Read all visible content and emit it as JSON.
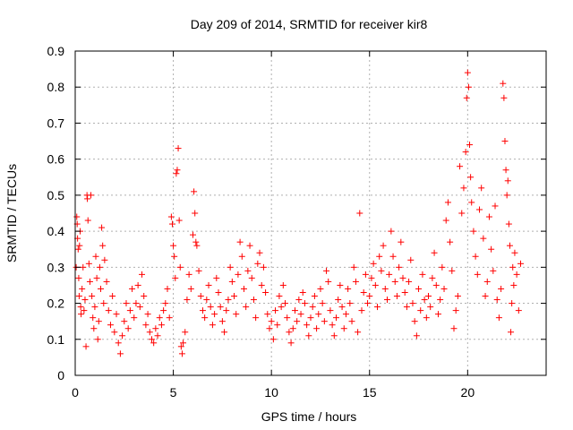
{
  "chart_data": {
    "type": "scatter",
    "title": "Day 209 of 2014, SRMTID for receiver kir8",
    "xlabel": "GPS time / hours",
    "ylabel": "SRMTID / TECUs",
    "xlim": [
      0,
      24
    ],
    "ylim": [
      0,
      0.9
    ],
    "xticks": [
      0,
      5,
      10,
      15,
      20
    ],
    "yticks": [
      0,
      0.1,
      0.2,
      0.3,
      0.4,
      0.5,
      0.6,
      0.7,
      0.8,
      0.9
    ],
    "xtick_labels": [
      "0",
      "5",
      "10",
      "15",
      "20"
    ],
    "ytick_labels": [
      "0",
      "0.1",
      "0.2",
      "0.3",
      "0.4",
      "0.5",
      "0.6",
      "0.7",
      "0.8",
      "0.9"
    ],
    "grid": true,
    "marker": "+",
    "color": "#ff0000",
    "series": [
      {
        "name": "SRMTID",
        "points": [
          [
            0.05,
            0.3
          ],
          [
            0.08,
            0.44
          ],
          [
            0.1,
            0.42
          ],
          [
            0.12,
            0.38
          ],
          [
            0.15,
            0.35
          ],
          [
            0.18,
            0.27
          ],
          [
            0.2,
            0.22
          ],
          [
            0.22,
            0.36
          ],
          [
            0.25,
            0.4
          ],
          [
            0.28,
            0.19
          ],
          [
            0.3,
            0.17
          ],
          [
            0.35,
            0.24
          ],
          [
            0.4,
            0.3
          ],
          [
            0.45,
            0.18
          ],
          [
            0.5,
            0.21
          ],
          [
            0.55,
            0.08
          ],
          [
            0.6,
            0.5
          ],
          [
            0.62,
            0.49
          ],
          [
            0.65,
            0.43
          ],
          [
            0.7,
            0.31
          ],
          [
            0.75,
            0.26
          ],
          [
            0.8,
            0.5
          ],
          [
            0.85,
            0.22
          ],
          [
            0.9,
            0.16
          ],
          [
            0.95,
            0.13
          ],
          [
            1.0,
            0.19
          ],
          [
            1.05,
            0.33
          ],
          [
            1.1,
            0.27
          ],
          [
            1.15,
            0.1
          ],
          [
            1.2,
            0.15
          ],
          [
            1.25,
            0.3
          ],
          [
            1.3,
            0.24
          ],
          [
            1.35,
            0.41
          ],
          [
            1.4,
            0.36
          ],
          [
            1.45,
            0.2
          ],
          [
            1.5,
            0.32
          ],
          [
            1.6,
            0.26
          ],
          [
            1.7,
            0.18
          ],
          [
            1.8,
            0.14
          ],
          [
            1.9,
            0.22
          ],
          [
            2.0,
            0.12
          ],
          [
            2.1,
            0.17
          ],
          [
            2.2,
            0.09
          ],
          [
            2.3,
            0.06
          ],
          [
            2.4,
            0.11
          ],
          [
            2.5,
            0.15
          ],
          [
            2.6,
            0.2
          ],
          [
            2.7,
            0.13
          ],
          [
            2.8,
            0.18
          ],
          [
            2.9,
            0.24
          ],
          [
            3.0,
            0.16
          ],
          [
            3.1,
            0.2
          ],
          [
            3.2,
            0.25
          ],
          [
            3.3,
            0.19
          ],
          [
            3.4,
            0.28
          ],
          [
            3.5,
            0.22
          ],
          [
            3.6,
            0.14
          ],
          [
            3.7,
            0.17
          ],
          [
            3.8,
            0.12
          ],
          [
            3.9,
            0.1
          ],
          [
            4.0,
            0.09
          ],
          [
            4.1,
            0.13
          ],
          [
            4.2,
            0.11
          ],
          [
            4.3,
            0.16
          ],
          [
            4.4,
            0.14
          ],
          [
            4.5,
            0.18
          ],
          [
            4.6,
            0.2
          ],
          [
            4.7,
            0.24
          ],
          [
            4.8,
            0.16
          ],
          [
            4.9,
            0.44
          ],
          [
            4.95,
            0.42
          ],
          [
            5.0,
            0.36
          ],
          [
            5.05,
            0.33
          ],
          [
            5.1,
            0.27
          ],
          [
            5.15,
            0.56
          ],
          [
            5.2,
            0.57
          ],
          [
            5.25,
            0.63
          ],
          [
            5.3,
            0.43
          ],
          [
            5.35,
            0.3
          ],
          [
            5.4,
            0.08
          ],
          [
            5.45,
            0.06
          ],
          [
            5.5,
            0.09
          ],
          [
            5.6,
            0.12
          ],
          [
            5.7,
            0.21
          ],
          [
            5.8,
            0.28
          ],
          [
            5.9,
            0.24
          ],
          [
            6.0,
            0.39
          ],
          [
            6.05,
            0.51
          ],
          [
            6.1,
            0.45
          ],
          [
            6.15,
            0.37
          ],
          [
            6.2,
            0.36
          ],
          [
            6.3,
            0.29
          ],
          [
            6.4,
            0.22
          ],
          [
            6.5,
            0.18
          ],
          [
            6.6,
            0.16
          ],
          [
            6.7,
            0.21
          ],
          [
            6.8,
            0.25
          ],
          [
            6.9,
            0.19
          ],
          [
            7.0,
            0.14
          ],
          [
            7.1,
            0.17
          ],
          [
            7.2,
            0.27
          ],
          [
            7.3,
            0.23
          ],
          [
            7.4,
            0.19
          ],
          [
            7.5,
            0.15
          ],
          [
            7.6,
            0.12
          ],
          [
            7.7,
            0.18
          ],
          [
            7.8,
            0.21
          ],
          [
            7.9,
            0.3
          ],
          [
            8.0,
            0.26
          ],
          [
            8.1,
            0.22
          ],
          [
            8.2,
            0.17
          ],
          [
            8.3,
            0.28
          ],
          [
            8.4,
            0.37
          ],
          [
            8.5,
            0.33
          ],
          [
            8.6,
            0.24
          ],
          [
            8.7,
            0.19
          ],
          [
            8.8,
            0.29
          ],
          [
            8.9,
            0.36
          ],
          [
            9.0,
            0.27
          ],
          [
            9.1,
            0.21
          ],
          [
            9.2,
            0.16
          ],
          [
            9.3,
            0.31
          ],
          [
            9.4,
            0.34
          ],
          [
            9.5,
            0.25
          ],
          [
            9.6,
            0.3
          ],
          [
            9.7,
            0.23
          ],
          [
            9.8,
            0.17
          ],
          [
            9.9,
            0.13
          ],
          [
            10.0,
            0.15
          ],
          [
            10.1,
            0.1
          ],
          [
            10.2,
            0.18
          ],
          [
            10.3,
            0.14
          ],
          [
            10.4,
            0.22
          ],
          [
            10.5,
            0.19
          ],
          [
            10.6,
            0.25
          ],
          [
            10.7,
            0.2
          ],
          [
            10.8,
            0.16
          ],
          [
            10.9,
            0.12
          ],
          [
            11.0,
            0.09
          ],
          [
            11.1,
            0.13
          ],
          [
            11.2,
            0.18
          ],
          [
            11.3,
            0.15
          ],
          [
            11.4,
            0.21
          ],
          [
            11.5,
            0.17
          ],
          [
            11.6,
            0.23
          ],
          [
            11.7,
            0.2
          ],
          [
            11.8,
            0.14
          ],
          [
            11.9,
            0.11
          ],
          [
            12.0,
            0.16
          ],
          [
            12.1,
            0.19
          ],
          [
            12.2,
            0.22
          ],
          [
            12.3,
            0.13
          ],
          [
            12.4,
            0.17
          ],
          [
            12.5,
            0.24
          ],
          [
            12.6,
            0.2
          ],
          [
            12.7,
            0.15
          ],
          [
            12.8,
            0.29
          ],
          [
            12.9,
            0.26
          ],
          [
            13.0,
            0.18
          ],
          [
            13.1,
            0.14
          ],
          [
            13.2,
            0.11
          ],
          [
            13.3,
            0.16
          ],
          [
            13.4,
            0.21
          ],
          [
            13.5,
            0.25
          ],
          [
            13.6,
            0.19
          ],
          [
            13.7,
            0.13
          ],
          [
            13.8,
            0.17
          ],
          [
            13.9,
            0.24
          ],
          [
            14.0,
            0.2
          ],
          [
            14.1,
            0.15
          ],
          [
            14.2,
            0.3
          ],
          [
            14.3,
            0.26
          ],
          [
            14.4,
            0.12
          ],
          [
            14.5,
            0.45
          ],
          [
            14.6,
            0.18
          ],
          [
            14.7,
            0.23
          ],
          [
            14.8,
            0.28
          ],
          [
            14.9,
            0.2
          ],
          [
            15.0,
            0.22
          ],
          [
            15.1,
            0.27
          ],
          [
            15.2,
            0.31
          ],
          [
            15.3,
            0.25
          ],
          [
            15.4,
            0.19
          ],
          [
            15.5,
            0.33
          ],
          [
            15.6,
            0.29
          ],
          [
            15.7,
            0.36
          ],
          [
            15.8,
            0.24
          ],
          [
            15.9,
            0.21
          ],
          [
            16.0,
            0.28
          ],
          [
            16.1,
            0.4
          ],
          [
            16.2,
            0.33
          ],
          [
            16.3,
            0.26
          ],
          [
            16.4,
            0.22
          ],
          [
            16.5,
            0.3
          ],
          [
            16.6,
            0.37
          ],
          [
            16.7,
            0.27
          ],
          [
            16.8,
            0.23
          ],
          [
            16.9,
            0.19
          ],
          [
            17.0,
            0.26
          ],
          [
            17.1,
            0.32
          ],
          [
            17.2,
            0.2
          ],
          [
            17.3,
            0.15
          ],
          [
            17.4,
            0.11
          ],
          [
            17.5,
            0.24
          ],
          [
            17.6,
            0.18
          ],
          [
            17.7,
            0.28
          ],
          [
            17.8,
            0.21
          ],
          [
            17.9,
            0.16
          ],
          [
            18.0,
            0.22
          ],
          [
            18.1,
            0.19
          ],
          [
            18.2,
            0.27
          ],
          [
            18.3,
            0.34
          ],
          [
            18.4,
            0.25
          ],
          [
            18.5,
            0.17
          ],
          [
            18.6,
            0.21
          ],
          [
            18.7,
            0.3
          ],
          [
            18.8,
            0.24
          ],
          [
            18.9,
            0.43
          ],
          [
            19.0,
            0.48
          ],
          [
            19.1,
            0.37
          ],
          [
            19.2,
            0.29
          ],
          [
            19.3,
            0.13
          ],
          [
            19.4,
            0.18
          ],
          [
            19.5,
            0.22
          ],
          [
            19.6,
            0.58
          ],
          [
            19.7,
            0.45
          ],
          [
            19.8,
            0.52
          ],
          [
            19.9,
            0.62
          ],
          [
            19.95,
            0.77
          ],
          [
            20.0,
            0.84
          ],
          [
            20.05,
            0.8
          ],
          [
            20.1,
            0.64
          ],
          [
            20.15,
            0.55
          ],
          [
            20.2,
            0.48
          ],
          [
            20.3,
            0.4
          ],
          [
            20.4,
            0.33
          ],
          [
            20.5,
            0.28
          ],
          [
            20.6,
            0.46
          ],
          [
            20.7,
            0.52
          ],
          [
            20.8,
            0.38
          ],
          [
            20.9,
            0.22
          ],
          [
            21.0,
            0.26
          ],
          [
            21.1,
            0.44
          ],
          [
            21.2,
            0.35
          ],
          [
            21.3,
            0.29
          ],
          [
            21.4,
            0.47
          ],
          [
            21.5,
            0.21
          ],
          [
            21.6,
            0.16
          ],
          [
            21.7,
            0.24
          ],
          [
            21.8,
            0.81
          ],
          [
            21.85,
            0.77
          ],
          [
            21.9,
            0.65
          ],
          [
            21.95,
            0.57
          ],
          [
            22.0,
            0.5
          ],
          [
            22.05,
            0.54
          ],
          [
            22.1,
            0.42
          ],
          [
            22.15,
            0.36
          ],
          [
            22.2,
            0.12
          ],
          [
            22.25,
            0.2
          ],
          [
            22.3,
            0.3
          ],
          [
            22.35,
            0.25
          ],
          [
            22.4,
            0.34
          ],
          [
            22.5,
            0.28
          ],
          [
            22.6,
            0.18
          ],
          [
            22.7,
            0.31
          ]
        ]
      }
    ]
  }
}
